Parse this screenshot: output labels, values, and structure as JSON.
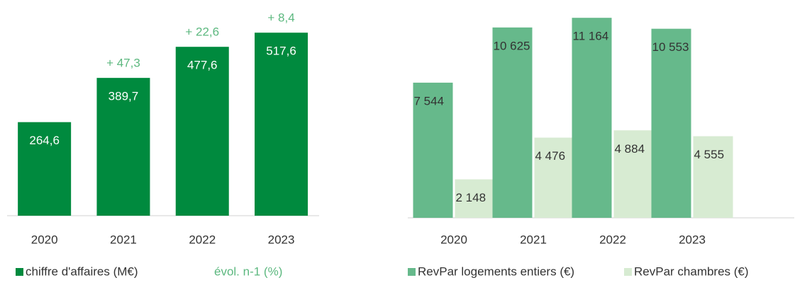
{
  "chart_data": [
    {
      "type": "bar",
      "categories": [
        "2020",
        "2021",
        "2022",
        "2023"
      ],
      "ylim": [
        0,
        550
      ],
      "series": [
        {
          "name": "chiffre d'affaires (M€)",
          "color": "#008a3e",
          "kind": "bar",
          "values": [
            264.6,
            389.7,
            477.6,
            517.6
          ],
          "value_labels": [
            "264,6",
            "389,7",
            "477,6",
            "517,6"
          ]
        },
        {
          "name": "évol. n-1 (%)",
          "color": "#5cb87f",
          "kind": "label",
          "values": [
            null,
            47.3,
            22.6,
            8.4
          ],
          "value_labels": [
            null,
            "+ 47,3",
            "+ 22,6",
            "+ 8,4"
          ]
        }
      ]
    },
    {
      "type": "bar",
      "categories": [
        "2020",
        "2021",
        "2022",
        "2023"
      ],
      "ylim": [
        0,
        12000
      ],
      "series": [
        {
          "name": "RevPar logements entiers (€)",
          "color": "#66b98b",
          "kind": "bar",
          "values": [
            7544,
            10625,
            11164,
            10553
          ],
          "value_labels": [
            "7 544",
            "10 625",
            "11 164",
            "10 553"
          ]
        },
        {
          "name": "RevPar chambres (€)",
          "color": "#d7ebd2",
          "kind": "bar",
          "values": [
            2148,
            4476,
            4884,
            4555
          ],
          "value_labels": [
            "2 148",
            "4 476",
            "4 884",
            "4 555"
          ]
        }
      ]
    }
  ]
}
